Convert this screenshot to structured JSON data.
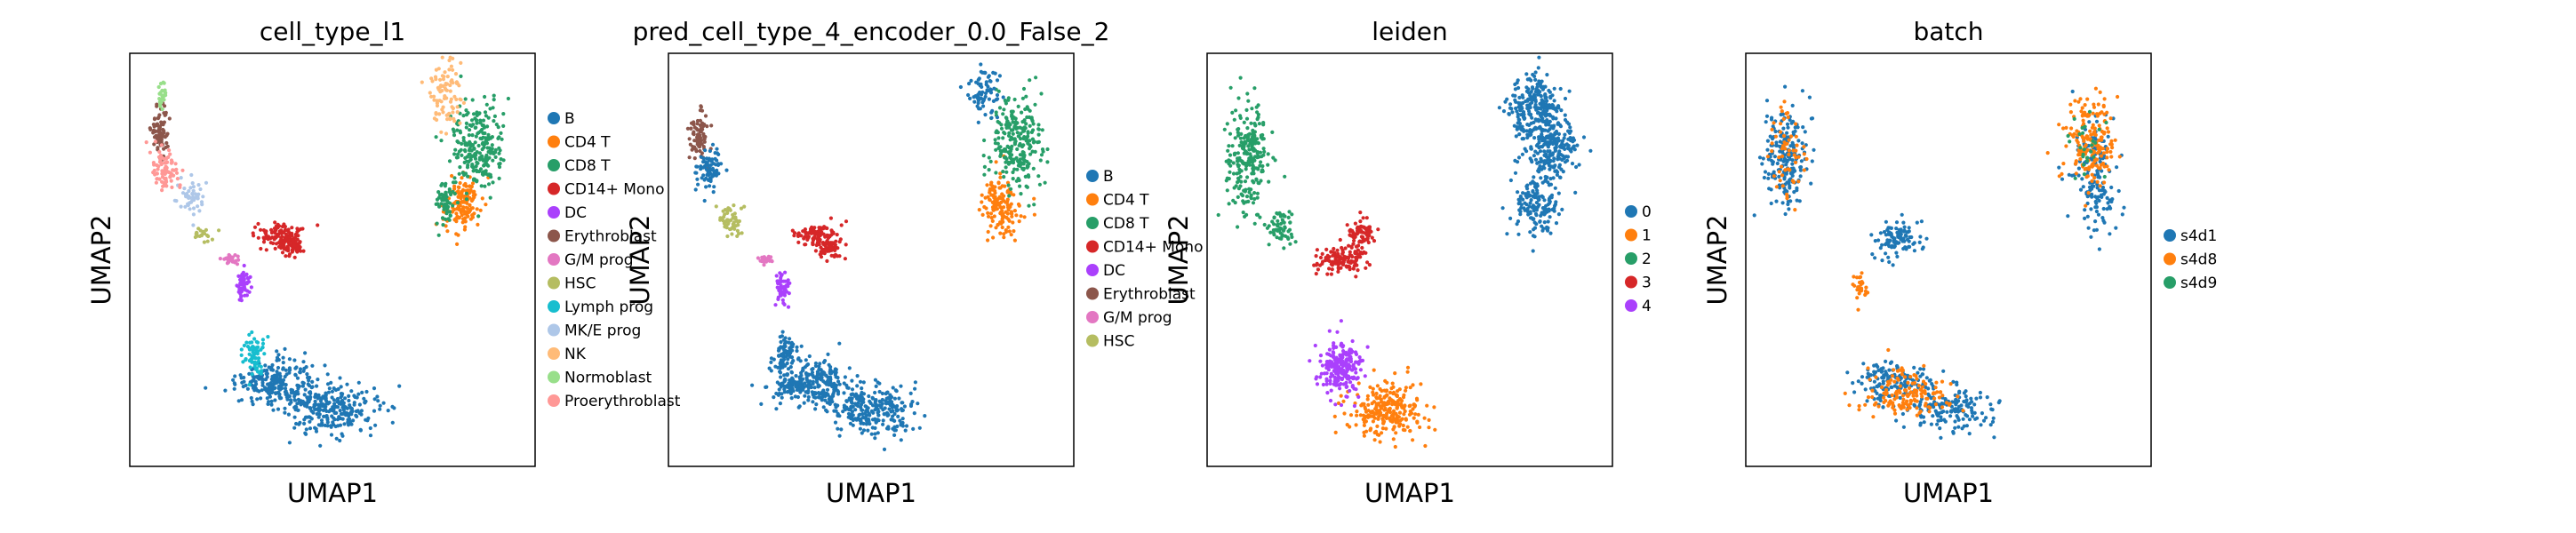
{
  "chart_data": [
    {
      "type": "scatter",
      "title": "cell_type_l1",
      "xlabel": "UMAP1",
      "ylabel": "UMAP2",
      "grid": false,
      "legend_position": "right",
      "legend": [
        {
          "name": "B",
          "color": "#1f77b4"
        },
        {
          "name": "CD4 T",
          "color": "#ff7f0e"
        },
        {
          "name": "CD8 T",
          "color": "#279e68"
        },
        {
          "name": "CD14+ Mono",
          "color": "#d62728"
        },
        {
          "name": "DC",
          "color": "#aa40fc"
        },
        {
          "name": "Erythroblast",
          "color": "#8c564b"
        },
        {
          "name": "G/M prog",
          "color": "#e377c2"
        },
        {
          "name": "HSC",
          "color": "#b5bd61"
        },
        {
          "name": "Lymph prog",
          "color": "#17becf"
        },
        {
          "name": "MK/E prog",
          "color": "#aec7e8"
        },
        {
          "name": "NK",
          "color": "#ffbb78"
        },
        {
          "name": "Normoblast",
          "color": "#98df8a"
        },
        {
          "name": "Proerythroblast",
          "color": "#ff9896"
        }
      ]
    },
    {
      "type": "scatter",
      "title": "pred_cell_type_4_encoder_0.0_False_2",
      "xlabel": "UMAP1",
      "ylabel": "UMAP2",
      "grid": false,
      "legend_position": "right",
      "legend": [
        {
          "name": "B",
          "color": "#1f77b4"
        },
        {
          "name": "CD4 T",
          "color": "#ff7f0e"
        },
        {
          "name": "CD8 T",
          "color": "#279e68"
        },
        {
          "name": "CD14+ Mono",
          "color": "#d62728"
        },
        {
          "name": "DC",
          "color": "#aa40fc"
        },
        {
          "name": "Erythroblast",
          "color": "#8c564b"
        },
        {
          "name": "G/M prog",
          "color": "#e377c2"
        },
        {
          "name": "HSC",
          "color": "#b5bd61"
        }
      ]
    },
    {
      "type": "scatter",
      "title": "leiden",
      "xlabel": "UMAP1",
      "ylabel": "UMAP2",
      "grid": false,
      "legend_position": "right",
      "legend": [
        {
          "name": "0",
          "color": "#1f77b4"
        },
        {
          "name": "1",
          "color": "#ff7f0e"
        },
        {
          "name": "2",
          "color": "#279e68"
        },
        {
          "name": "3",
          "color": "#d62728"
        },
        {
          "name": "4",
          "color": "#aa40fc"
        }
      ]
    },
    {
      "type": "scatter",
      "title": "batch",
      "xlabel": "UMAP1",
      "ylabel": "UMAP2",
      "grid": false,
      "legend_position": "right",
      "legend": [
        {
          "name": "s4d1",
          "color": "#1f77b4"
        },
        {
          "name": "s4d8",
          "color": "#ff7f0e"
        },
        {
          "name": "s4d9",
          "color": "#279e68"
        }
      ]
    }
  ]
}
